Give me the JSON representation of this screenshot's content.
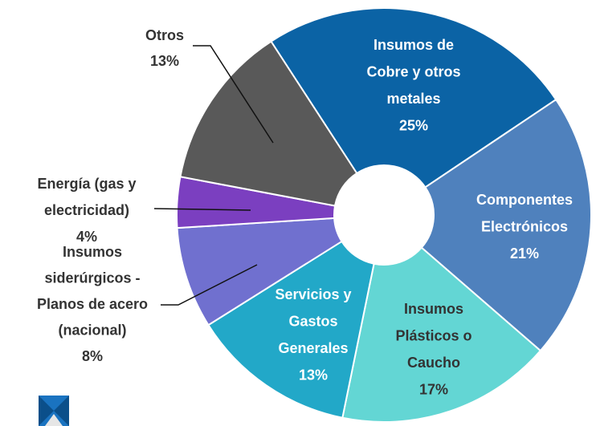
{
  "chart_data": {
    "type": "pie",
    "categories": [
      [
        "Insumos de",
        "Cobre y otros",
        "metales"
      ],
      [
        "Componentes",
        "Electrónicos"
      ],
      [
        "Insumos",
        "Plásticos o",
        "Caucho"
      ],
      [
        "Servicios y",
        "Gastos",
        "Generales"
      ],
      [
        "Insumos",
        "siderúrgicos -",
        "Planos de acero",
        "(nacional)"
      ],
      [
        "Energía (gas y",
        "electricidad)"
      ],
      [
        "Otros"
      ]
    ],
    "values": [
      25,
      21,
      17,
      13,
      8,
      4,
      13
    ],
    "value_labels": [
      "25%",
      "21%",
      "17%",
      "13%",
      "8%",
      "4%",
      "13%"
    ],
    "colors": [
      "#0b63a5",
      "#4f81bd",
      "#63d6d4",
      "#22a8c8",
      "#7070cf",
      "#7b3fc0",
      "#595959"
    ]
  }
}
